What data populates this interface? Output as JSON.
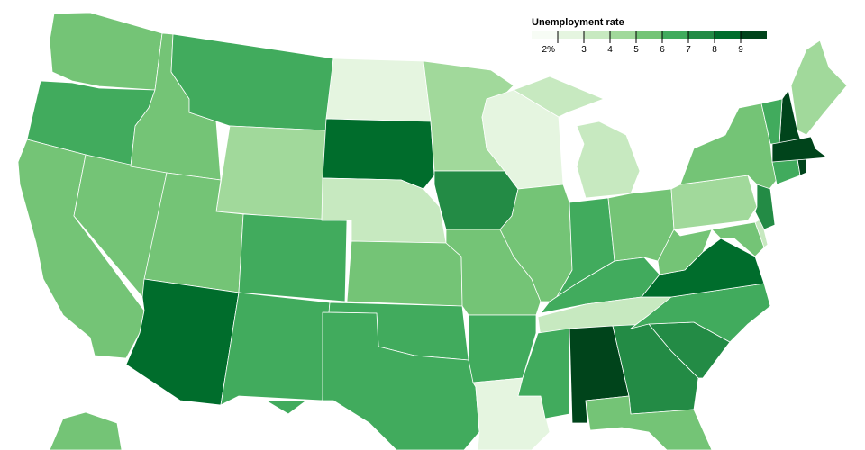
{
  "chart_data": {
    "type": "choropleth",
    "legend": {
      "title": "Unemployment rate",
      "thresholds": [
        {
          "value": 2,
          "label": "2%"
        },
        3,
        4,
        5,
        6,
        7,
        8,
        9
      ],
      "colors": [
        "#f7fcf5",
        "#e5f5e0",
        "#c7e9c0",
        "#a1d99b",
        "#74c476",
        "#41ab5d",
        "#238b45",
        "#006d2c",
        "#00441b"
      ]
    },
    "values": [
      5.5,
      6.5,
      5.5,
      5.5,
      5.5,
      6.5,
      4.5,
      5.5,
      8.5,
      6.5,
      6.5,
      2.5,
      8.5,
      3.5,
      5.5,
      6.5,
      6.5,
      4.5,
      7.5,
      5.5,
      6.5,
      2.5,
      2.5,
      5.5,
      3.5,
      6.5,
      5.5,
      6.5,
      3.5,
      6.5,
      9.5,
      7.5,
      5.5,
      7.5,
      6.5,
      8.5,
      5.5,
      4.5,
      5.5,
      5.5,
      3.5,
      7.5,
      6.5,
      9.5,
      9.5,
      6.5,
      9.5,
      4.5,
      5.5
    ]
  }
}
